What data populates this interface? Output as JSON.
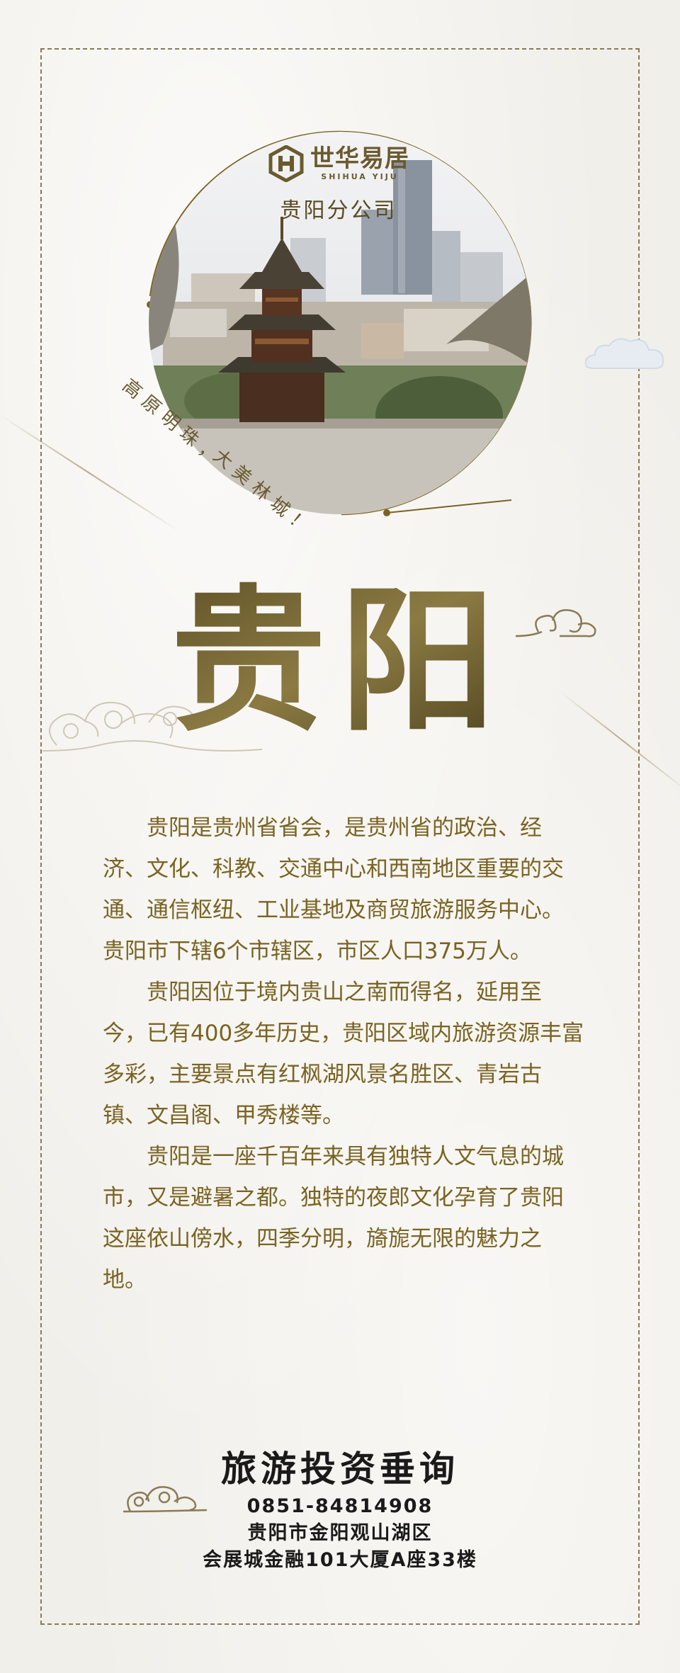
{
  "brand": {
    "name": "世华易居",
    "name_en": "SHIHUA YIJU",
    "branch": "贵阳分公司"
  },
  "taglines": [
    "高原明珠，",
    "大美林城！"
  ],
  "title": "贵阳",
  "paragraphs": [
    "贵阳是贵州省省会，是贵州省的政治、经济、文化、科教、交通中心和西南地区重要的交通、通信枢纽、工业基地及商贸旅游服务中心。贵阳市下辖6个市辖区，市区人口375万人。",
    "贵阳因位于境内贵山之南而得名，延用至今，已有400多年历史，贵阳区域内旅游资源丰富多彩，主要景点有红枫湖风景名胜区、青岩古镇、文昌阁、甲秀楼等。",
    "贵阳是一座千百年来具有独特人文气息的城市，又是避暑之都。独特的夜郎文化孕育了贵阳这座依山傍水，四季分明，旖旎无限的魅力之地。"
  ],
  "contact": {
    "title": "旅游投资垂询",
    "phone": "0851-84814908",
    "address_line1": "贵阳市金阳观山湖区",
    "address_line2": "会展城金融101大厦A座33楼"
  },
  "colors": {
    "gold": "#7a6322",
    "frame": "#8a7a55",
    "text_dark": "#1a1a1a"
  }
}
